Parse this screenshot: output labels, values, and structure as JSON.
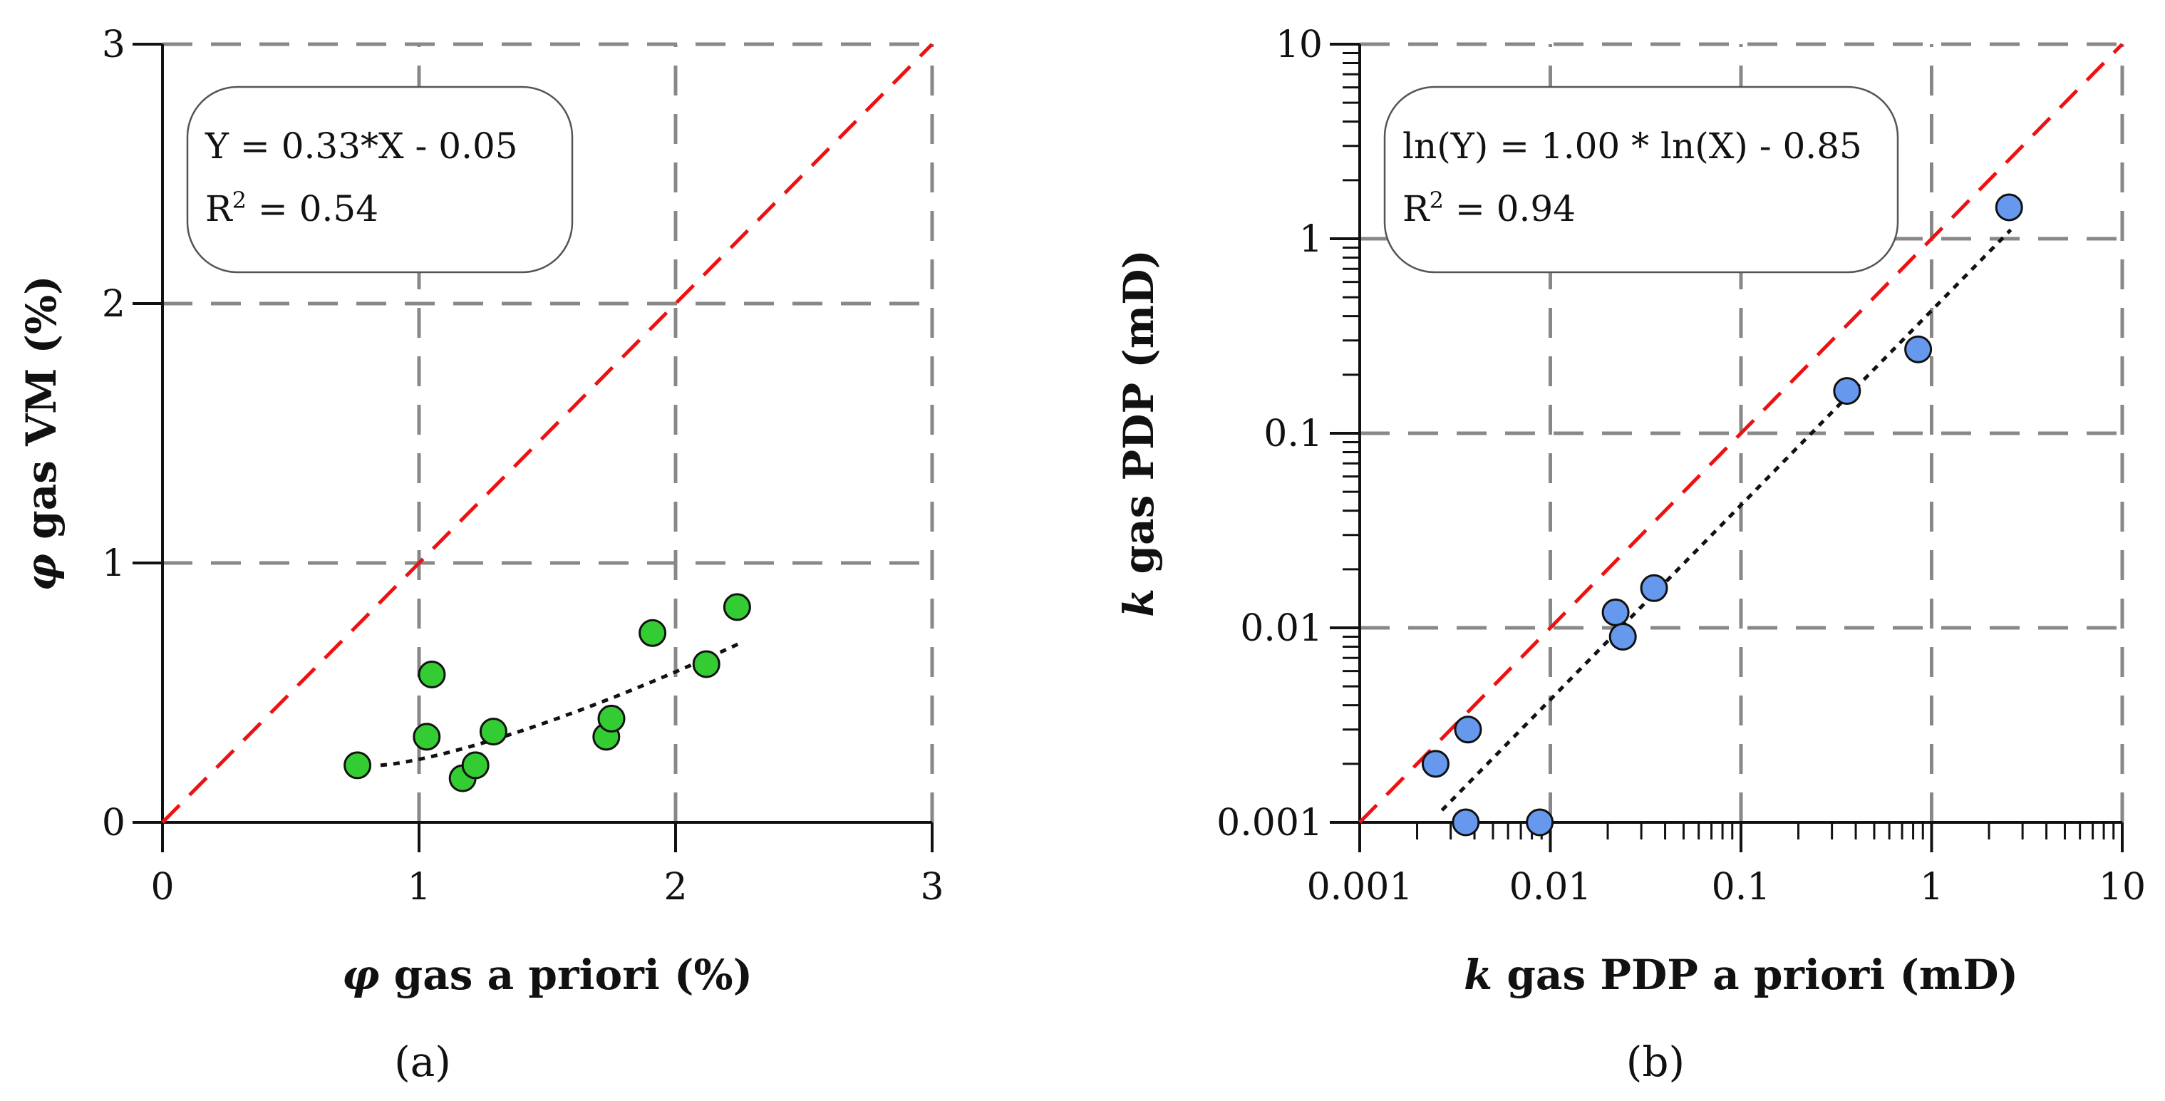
{
  "chart_data": [
    {
      "type": "scatter",
      "panel_label": "(a)",
      "xlabel_symbol": "φ",
      "xlabel": "gas a priori (%)",
      "ylabel_symbol": "φ",
      "ylabel": "gas VM (%)",
      "xlim": [
        0,
        3
      ],
      "ylim": [
        0,
        3
      ],
      "x_scale": "linear",
      "y_scale": "linear",
      "xticks": [
        "0",
        "1",
        "2",
        "3"
      ],
      "yticks": [
        "0",
        "1",
        "2",
        "3"
      ],
      "grid": true,
      "point_color": "#33cc33",
      "points": [
        {
          "x": 0.76,
          "y": 0.22
        },
        {
          "x": 1.03,
          "y": 0.33
        },
        {
          "x": 1.05,
          "y": 0.57
        },
        {
          "x": 1.17,
          "y": 0.17
        },
        {
          "x": 1.22,
          "y": 0.22
        },
        {
          "x": 1.29,
          "y": 0.35
        },
        {
          "x": 1.73,
          "y": 0.33
        },
        {
          "x": 1.75,
          "y": 0.4
        },
        {
          "x": 1.91,
          "y": 0.73
        },
        {
          "x": 2.12,
          "y": 0.61
        },
        {
          "x": 2.24,
          "y": 0.83
        }
      ],
      "identity_line": {
        "color": "#ee1111",
        "style": "dashed"
      },
      "fit": {
        "slope": 0.33,
        "intercept": -0.05,
        "x_range": [
          0.85,
          2.25
        ],
        "style": "dotted"
      },
      "annotation": {
        "line1": "Y = 0.33*X - 0.05",
        "line2_prefix": "R",
        "line2_sup": "2",
        "line2_suffix": " = 0.54"
      }
    },
    {
      "type": "scatter",
      "panel_label": "(b)",
      "xlabel_symbol": "k",
      "xlabel": "gas PDP a priori (mD)",
      "ylabel_symbol": "k",
      "ylabel": "gas PDP (mD)",
      "xlim": [
        0.001,
        10
      ],
      "ylim": [
        0.001,
        10
      ],
      "x_scale": "log",
      "y_scale": "log",
      "xticks": [
        "0.001",
        "0.01",
        "0.1",
        "1",
        "10"
      ],
      "yticks": [
        "0.001",
        "0.01",
        "0.1",
        "1",
        "10"
      ],
      "grid": true,
      "point_color": "#6699ee",
      "points": [
        {
          "x": 0.0025,
          "y": 0.002
        },
        {
          "x": 0.0036,
          "y": 0.001
        },
        {
          "x": 0.0037,
          "y": 0.003
        },
        {
          "x": 0.0088,
          "y": 0.001
        },
        {
          "x": 0.022,
          "y": 0.012
        },
        {
          "x": 0.024,
          "y": 0.009
        },
        {
          "x": 0.035,
          "y": 0.016
        },
        {
          "x": 0.36,
          "y": 0.165
        },
        {
          "x": 0.85,
          "y": 0.27
        },
        {
          "x": 2.55,
          "y": 1.45
        }
      ],
      "identity_line": {
        "color": "#ee1111",
        "style": "dashed"
      },
      "fit": {
        "slope": 1.0,
        "intercept": -0.85,
        "x_range": [
          0.0027,
          2.6
        ],
        "style": "dotted"
      },
      "annotation": {
        "line1": "ln(Y) = 1.00 * ln(X) - 0.85",
        "line2_prefix": "R",
        "line2_sup": "2",
        "line2_suffix": " = 0.94"
      }
    }
  ]
}
